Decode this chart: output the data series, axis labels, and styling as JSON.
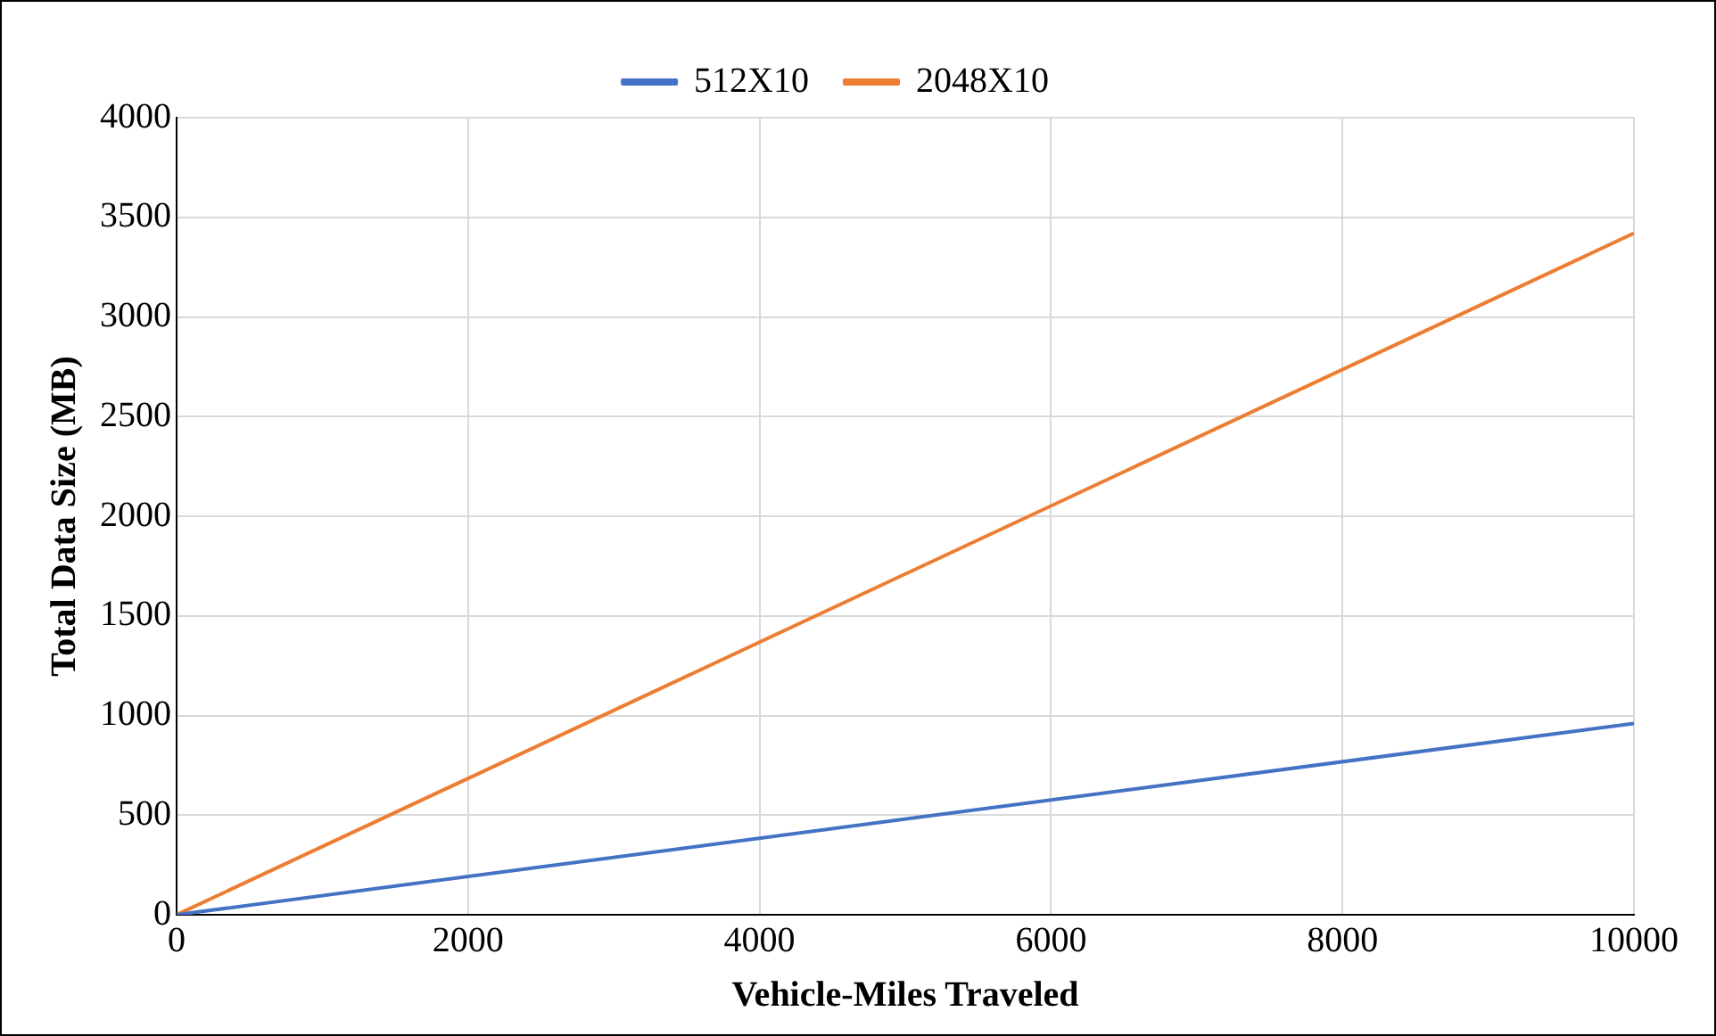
{
  "chart_data": {
    "type": "line",
    "xlabel": "Vehicle-Miles Traveled",
    "ylabel": "Total Data Size (MB)",
    "x": [
      0,
      10000
    ],
    "series": [
      {
        "name": "512X10",
        "color": "#4472c4",
        "values": [
          0,
          960
        ]
      },
      {
        "name": "2048X10",
        "color": "#ed7d31",
        "values": [
          0,
          3420
        ]
      }
    ],
    "xlim": [
      0,
      10000
    ],
    "xticks": [
      0,
      2000,
      4000,
      6000,
      8000,
      10000
    ],
    "ylim": [
      0,
      4000
    ],
    "yticks": [
      0,
      500,
      1000,
      1500,
      2000,
      2500,
      3000,
      3500,
      4000
    ],
    "grid": true,
    "legend": "top",
    "marker": "none",
    "line_style": "solid"
  }
}
